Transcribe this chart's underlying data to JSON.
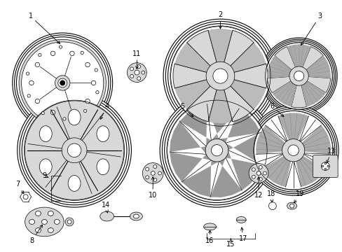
{
  "background_color": "#ffffff",
  "fig_width": 4.89,
  "fig_height": 3.6,
  "dpi": 100,
  "line_color": "#000000",
  "fill_light": "#d8d8d8",
  "fill_white": "#ffffff"
}
